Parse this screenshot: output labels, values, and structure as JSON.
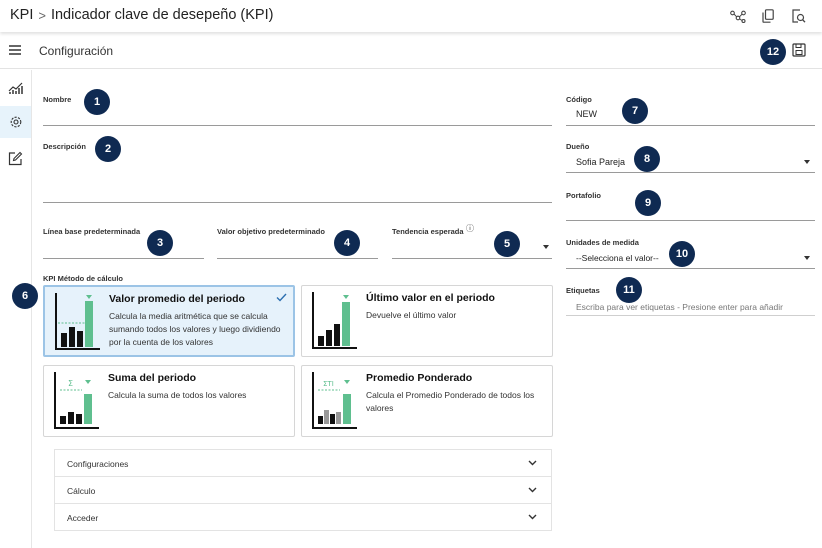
{
  "breadcrumb": {
    "root": "KPI",
    "separator": ">",
    "current": "Indicador clave de desepeño (KPI)"
  },
  "subheader": {
    "title": "Configuración"
  },
  "fields": {
    "nombre": {
      "label": "Nombre",
      "value": ""
    },
    "descripcion": {
      "label": "Descripción",
      "value": ""
    },
    "linea_base": {
      "label": "Línea base predeterminada",
      "value": ""
    },
    "valor_objetivo": {
      "label": "Valor objetivo predeterminado",
      "value": ""
    },
    "tendencia": {
      "label": "Tendencia esperada",
      "info": "ⓘ",
      "value": ""
    },
    "codigo": {
      "label": "Código",
      "value": "NEW"
    },
    "dueno": {
      "label": "Dueño",
      "value": "Sofia Pareja"
    },
    "portafolio": {
      "label": "Portafolio",
      "value": ""
    },
    "unidades": {
      "label": "Unidades de medida",
      "value": "--Selecciona el valor--"
    },
    "etiquetas": {
      "label": "Etiquetas",
      "placeholder": "Escriba para ver etiquetas - Presione enter para añadir"
    }
  },
  "method": {
    "label": "KPI Método de cálculo",
    "selected_index": 0,
    "options": [
      {
        "title": "Valor promedio del periodo",
        "desc": "Calcula la media aritmética que se calcula sumando todos los valores y luego dividiendo por la cuenta de los valores",
        "chart_mark": ""
      },
      {
        "title": "Último valor en el periodo",
        "desc": "Devuelve el último valor",
        "chart_mark": ""
      },
      {
        "title": "Suma del periodo",
        "desc": "Calcula la suma de todos los valores",
        "chart_mark": "Σ"
      },
      {
        "title": "Promedio Ponderado",
        "desc": "Calcula el Promedio Ponderado de todos los valores",
        "chart_mark": "ΣTI"
      }
    ]
  },
  "accordion": [
    "Configuraciones",
    "Cálculo",
    "Acceder"
  ],
  "badges": [
    "1",
    "2",
    "3",
    "4",
    "5",
    "6",
    "7",
    "8",
    "9",
    "10",
    "11",
    "12"
  ],
  "colors": {
    "badge": "#0f2a52",
    "selected_bg": "#e6f2fb",
    "accent_green": "#5fbf8f",
    "check": "#2c6fb0"
  },
  "icons": {
    "top": [
      "share-nodes-icon",
      "copy-icon",
      "search-document-icon"
    ],
    "sidebar": [
      "chart-icon",
      "gear-icon",
      "edit-icon"
    ],
    "save": "save-icon",
    "menu": "hamburger-icon"
  }
}
